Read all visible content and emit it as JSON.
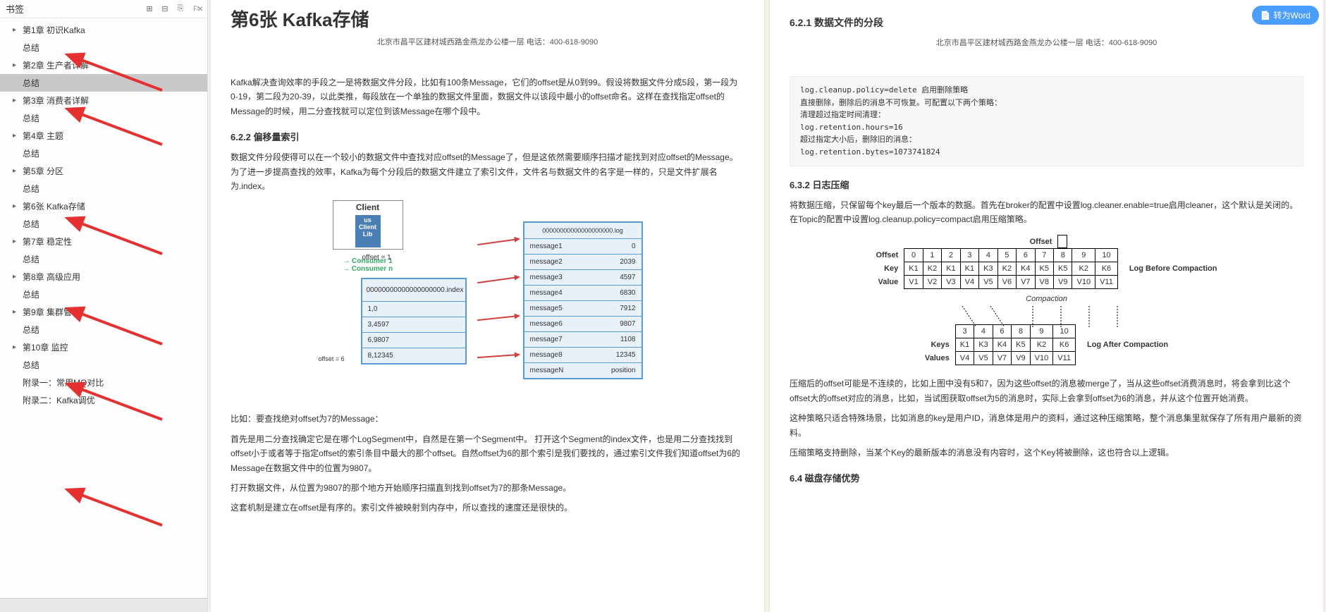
{
  "sidebar": {
    "title": "书签",
    "close": "×",
    "items": [
      {
        "label": "第1章 初识Kafka",
        "arrow": true
      },
      {
        "label": "总结",
        "child": true
      },
      {
        "label": "第2章 生产者详解",
        "arrow": true
      },
      {
        "label": "总结",
        "child": true,
        "selected": true
      },
      {
        "label": "第3章 消费者详解",
        "arrow": true
      },
      {
        "label": "总结",
        "child": true
      },
      {
        "label": "第4章  主题",
        "arrow": true
      },
      {
        "label": "总结",
        "child": true
      },
      {
        "label": "第5章 分区",
        "arrow": true
      },
      {
        "label": "总结",
        "child": true
      },
      {
        "label": "第6张  Kafka存储",
        "arrow": true
      },
      {
        "label": "总结",
        "child": true
      },
      {
        "label": "第7章  稳定性",
        "arrow": true
      },
      {
        "label": "总结",
        "child": true
      },
      {
        "label": "第8章  高级应用",
        "arrow": true
      },
      {
        "label": "总结",
        "child": true
      },
      {
        "label": "第9章  集群管理",
        "arrow": true
      },
      {
        "label": "总结",
        "child": true
      },
      {
        "label": "第10章  监控",
        "arrow": true
      },
      {
        "label": "总结",
        "child": true
      },
      {
        "label": "附录一：常用MQ对比",
        "child": true
      },
      {
        "label": "附录二：Kafka调优",
        "child": true
      }
    ]
  },
  "convert_btn": "转为Word",
  "left_page": {
    "title": "第6张 Kafka存储",
    "addr": "北京市昌平区建材城西路金燕龙办公楼一层    电话：400-618-9090",
    "p1": "Kafka解决查询效率的手段之一是将数据文件分段，比如有100条Message，它们的offset是从0到99。假设将数据文件分成5段，第一段为0-19，第二段为20-39，以此类推，每段放在一个单独的数据文件里面，数据文件以该段中最小的offset命名。这样在查找指定offset的Message的时候，用二分查找就可以定位到该Message在哪个段中。",
    "h1": "6.2.2  偏移量索引",
    "p2": "数据文件分段使得可以在一个较小的数据文件中查找对应offset的Message了，但是这依然需要顺序扫描才能找到对应offset的Message。为了进一步提高查找的效率，Kafka为每个分段后的数据文件建立了索引文件，文件名与数据文件的名字是一样的，只是文件扩展名为.index。",
    "diagram": {
      "client": "Client",
      "client_inner": "us Client Lib",
      "consumer1": "Consumer 1",
      "consumern": "Consumer n",
      "offset": "offset = 1",
      "offset_eq": "offset = 6",
      "index_file": "00000000000000000000.index",
      "index_rows": [
        "1,0",
        "3,4597",
        "6,9807",
        "8,12345"
      ],
      "log_file": "00000000000000000000.log",
      "log_rows": [
        {
          "m": "message1",
          "v": "0"
        },
        {
          "m": "message2",
          "v": "2039"
        },
        {
          "m": "message3",
          "v": "4597"
        },
        {
          "m": "message4",
          "v": "6830"
        },
        {
          "m": "message5",
          "v": "7912"
        },
        {
          "m": "message6",
          "v": "9807"
        },
        {
          "m": "message7",
          "v": "1108"
        },
        {
          "m": "message8",
          "v": "12345"
        },
        {
          "m": "messageN",
          "v": "position"
        }
      ]
    },
    "p3": "比如：要查找绝对offset为7的Message：",
    "p4": "首先是用二分查找确定它是在哪个LogSegment中，自然是在第一个Segment中。 打开这个Segment的index文件，也是用二分查找找到offset小于或者等于指定offset的索引条目中最大的那个offset。自然offset为6的那个索引是我们要找的，通过索引文件我们知道offset为6的Message在数据文件中的位置为9807。",
    "p5": "打开数据文件，从位置为9807的那个地方开始顺序扫描直到找到offset为7的那条Message。",
    "p6": "这套机制是建立在offset是有序的。索引文件被映射到内存中，所以查找的速度还是很快的。"
  },
  "right_page": {
    "h0": "6.2.1 数据文件的分段",
    "addr": "北京市昌平区建材城西路金燕龙办公楼一层    电话：400-618-9090",
    "code": "log.cleanup.policy=delete 启用删除策略\n直接删除，删除后的消息不可恢复。可配置以下两个策略：\n清理超过指定时间清理：\nlog.retention.hours=16\n超过指定大小后，删除旧的消息：\nlog.retention.bytes=1073741824",
    "h1": "6.3.2  日志压缩",
    "p1": "将数据压缩，只保留每个key最后一个版本的数据。首先在broker的配置中设置log.cleaner.enable=true启用cleaner，这个默认是关闭的。在Topic的配置中设置log.cleanup.policy=compact启用压缩策略。",
    "compaction": {
      "before_label": "Log Before Compaction",
      "after_label": "Log After Compaction",
      "comp_mid": "Compaction",
      "offset_label": "Offset",
      "key_label": "Key",
      "value_label": "Value",
      "keys_label": "Keys",
      "values_label": "Values",
      "offsets": [
        "0",
        "1",
        "2",
        "3",
        "4",
        "5",
        "6",
        "7",
        "8",
        "9",
        "10"
      ],
      "keys": [
        "K1",
        "K2",
        "K1",
        "K1",
        "K3",
        "K2",
        "K4",
        "K5",
        "K5",
        "K2",
        "K6"
      ],
      "values": [
        "V1",
        "V2",
        "V3",
        "V4",
        "V5",
        "V6",
        "V7",
        "V8",
        "V9",
        "V10",
        "V11"
      ],
      "after_offsets": [
        "3",
        "4",
        "6",
        "8",
        "9",
        "10"
      ],
      "after_keys": [
        "K1",
        "K3",
        "K4",
        "K5",
        "K2",
        "K6"
      ],
      "after_values": [
        "V4",
        "V5",
        "V7",
        "V9",
        "V10",
        "V11"
      ]
    },
    "p2": "压缩后的offset可能是不连续的，比如上图中没有5和7，因为这些offset的消息被merge了，当从这些offset消费消息时，将会拿到比这个offset大的offset对应的消息，比如，当试图获取offset为5的消息时，实际上会拿到offset为6的消息，并从这个位置开始消费。",
    "p3": "这种策略只适合特殊场景，比如消息的key是用户ID，消息体是用户的资料，通过这种压缩策略，整个消息集里就保存了所有用户最新的资料。",
    "p4": "压缩策略支持删除，当某个Key的最新版本的消息没有内容时，这个Key将被删除，这也符合以上逻辑。",
    "h2": "6.4 磁盘存储优势"
  },
  "arrows": {
    "color": "#e6302f",
    "positions": [
      78,
      155,
      310,
      438,
      545,
      695
    ]
  }
}
